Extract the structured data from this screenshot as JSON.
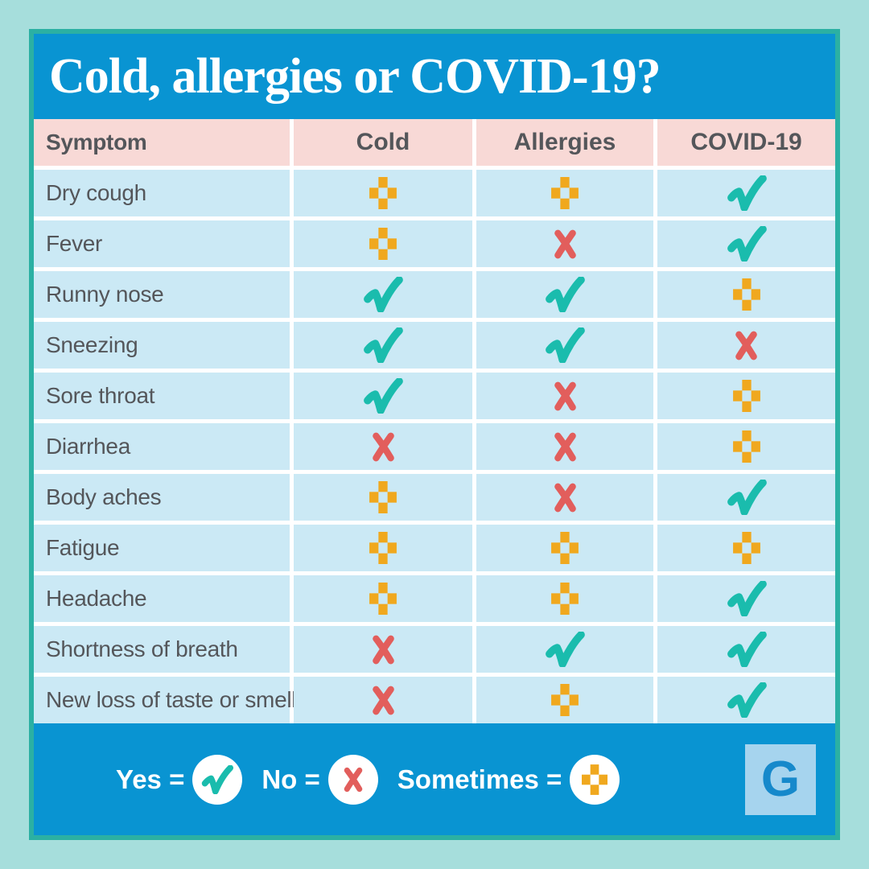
{
  "chart_data": {
    "type": "table",
    "title": "Cold, allergies or COVID-19?",
    "columns": [
      "Symptom",
      "Cold",
      "Allergies",
      "COVID-19"
    ],
    "value_key": {
      "yes": "check-icon",
      "no": "x-icon",
      "sometimes": "plus-icon"
    },
    "rows": [
      {
        "symptom": "Dry cough",
        "cold": "sometimes",
        "allergies": "sometimes",
        "covid19": "yes"
      },
      {
        "symptom": "Fever",
        "cold": "sometimes",
        "allergies": "no",
        "covid19": "yes"
      },
      {
        "symptom": "Runny nose",
        "cold": "yes",
        "allergies": "yes",
        "covid19": "sometimes"
      },
      {
        "symptom": "Sneezing",
        "cold": "yes",
        "allergies": "yes",
        "covid19": "no"
      },
      {
        "symptom": "Sore throat",
        "cold": "yes",
        "allergies": "no",
        "covid19": "sometimes"
      },
      {
        "symptom": "Diarrhea",
        "cold": "no",
        "allergies": "no",
        "covid19": "sometimes"
      },
      {
        "symptom": "Body aches",
        "cold": "sometimes",
        "allergies": "no",
        "covid19": "yes"
      },
      {
        "symptom": "Fatigue",
        "cold": "sometimes",
        "allergies": "sometimes",
        "covid19": "sometimes"
      },
      {
        "symptom": "Headache",
        "cold": "sometimes",
        "allergies": "sometimes",
        "covid19": "yes"
      },
      {
        "symptom": "Shortness of breath",
        "cold": "no",
        "allergies": "yes",
        "covid19": "yes"
      },
      {
        "symptom": "New loss of taste or smell",
        "cold": "no",
        "allergies": "sometimes",
        "covid19": "yes"
      }
    ]
  },
  "legend_items": [
    {
      "label": "Yes =",
      "symbol": "yes"
    },
    {
      "label": "No =",
      "symbol": "no"
    },
    {
      "label": "Sometimes =",
      "symbol": "sometimes"
    }
  ],
  "logo": {
    "letter": "G"
  },
  "colors": {
    "background": "#A6DEDC",
    "frame_teal": "#2BB0A3",
    "banner_blue": "#0994D2",
    "header_pink": "#F8D9D6",
    "row_blue": "#CBE9F5",
    "text_gray": "#54565A",
    "yes_teal": "#1ABCAD",
    "no_red": "#E25E5C",
    "sometimes_orange": "#F0A81E",
    "logo_square": "#A6D4EE",
    "logo_letter_blue": "#1689CB"
  }
}
